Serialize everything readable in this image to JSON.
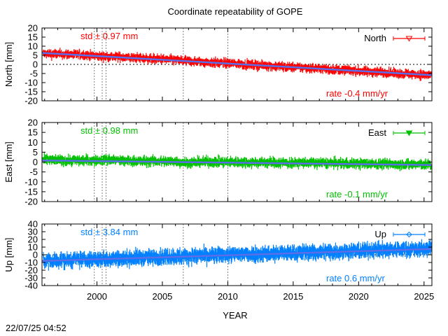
{
  "title": "Coordinate repeatability of GOPE",
  "timestamp": "22/07/25 04:52",
  "colors": {
    "north": "#ff0000",
    "east": "#00c000",
    "up": "#0080ff",
    "trend": "#5b6ee8"
  },
  "chart_data": [
    {
      "type": "scatter",
      "name": "north",
      "title": "Coordinate repeatability of GOPE",
      "legend": "North",
      "legend_position": "top-right",
      "ylabel": "North [mm]",
      "xlabel": "",
      "xlim": [
        1995.8,
        2025.6
      ],
      "ylim": [
        -20,
        20
      ],
      "yticks": [
        20,
        15,
        10,
        5,
        0,
        -5,
        -10,
        -15,
        -20
      ],
      "std_text": "std ± 0.97 mm",
      "rate_text": "rate -0.4 mm/yr",
      "trend": {
        "x": [
          1995.8,
          2025.6
        ],
        "y": [
          6.3,
          -5.9
        ]
      },
      "series": [
        {
          "name": "x",
          "values": [
            1996.0,
            1997.0,
            1998.0,
            1999.0,
            2000.0,
            2001.0,
            2002.0,
            2003.0,
            2004.0,
            2005.0,
            2006.0,
            2007.0,
            2008.0,
            2009.0,
            2010.0,
            2011.0,
            2012.0,
            2013.0,
            2014.0,
            2015.0,
            2016.0,
            2017.0,
            2018.0,
            2019.0,
            2020.0,
            2021.0,
            2022.0,
            2023.0,
            2024.0,
            2025.0
          ]
        },
        {
          "name": "y",
          "values": [
            5.8,
            5.6,
            5.5,
            5.2,
            4.5,
            4.3,
            4.0,
            3.6,
            3.2,
            2.8,
            2.4,
            1.8,
            1.4,
            1.0,
            0.6,
            0.2,
            -0.3,
            -0.7,
            -1.1,
            -1.5,
            -1.9,
            -2.3,
            -2.8,
            -3.2,
            -3.6,
            -4.0,
            -4.4,
            -4.9,
            -5.3,
            -5.7
          ]
        }
      ]
    },
    {
      "type": "scatter",
      "name": "east",
      "legend": "East",
      "legend_position": "top-right",
      "ylabel": "East [mm]",
      "xlabel": "",
      "xlim": [
        1995.8,
        2025.6
      ],
      "ylim": [
        -20,
        20
      ],
      "yticks": [
        20,
        15,
        10,
        5,
        0,
        -5,
        -10,
        -15,
        -20
      ],
      "std_text": "std ± 0.98 mm",
      "rate_text": "rate -0.1 mm/yr",
      "trend": {
        "x": [
          1995.8,
          2025.6
        ],
        "y": [
          0.8,
          -1.5
        ]
      },
      "series": [
        {
          "name": "x",
          "values": [
            1996.0,
            1997.0,
            1998.0,
            1999.0,
            2000.0,
            2001.0,
            2002.0,
            2003.0,
            2004.0,
            2005.0,
            2006.0,
            2007.0,
            2008.0,
            2009.0,
            2010.0,
            2011.0,
            2012.0,
            2013.0,
            2014.0,
            2015.0,
            2016.0,
            2017.0,
            2018.0,
            2019.0,
            2020.0,
            2021.0,
            2022.0,
            2023.0,
            2024.0,
            2025.0
          ]
        },
        {
          "name": "y",
          "values": [
            1.0,
            0.9,
            0.8,
            0.8,
            0.7,
            1.2,
            0.6,
            0.5,
            0.4,
            0.4,
            0.3,
            -0.5,
            0.2,
            0.1,
            0.0,
            -0.1,
            -0.2,
            -0.2,
            -0.3,
            -0.4,
            -0.4,
            -0.5,
            -0.6,
            -0.7,
            -0.8,
            -0.9,
            -1.0,
            -1.1,
            -1.2,
            -1.3
          ]
        }
      ]
    },
    {
      "type": "scatter",
      "name": "up",
      "legend": "Up",
      "legend_position": "top-right",
      "ylabel": "Up [mm]",
      "xlabel": "YEAR",
      "xlim": [
        1995.8,
        2025.6
      ],
      "ylim": [
        -40,
        40
      ],
      "yticks": [
        40,
        30,
        20,
        10,
        0,
        -10,
        -20,
        -30,
        -40
      ],
      "xticks": [
        2000,
        2005,
        2010,
        2015,
        2020,
        2025
      ],
      "std_text": "std ± 3.84 mm",
      "rate_text": "rate  0.6 mm/yr",
      "trend": {
        "x": [
          1995.8,
          2025.6
        ],
        "y": [
          -8.0,
          7.5
        ]
      },
      "series": [
        {
          "name": "x",
          "values": [
            1996.0,
            1997.0,
            1998.0,
            1999.0,
            2000.0,
            2001.0,
            2002.0,
            2003.0,
            2004.0,
            2005.0,
            2006.0,
            2007.0,
            2008.0,
            2009.0,
            2010.0,
            2011.0,
            2012.0,
            2013.0,
            2014.0,
            2015.0,
            2016.0,
            2017.0,
            2018.0,
            2019.0,
            2020.0,
            2021.0,
            2022.0,
            2023.0,
            2024.0,
            2025.0
          ]
        },
        {
          "name": "y",
          "values": [
            -8.0,
            -7.5,
            -6.8,
            -6.3,
            -5.5,
            -5.0,
            -4.4,
            -3.9,
            -3.4,
            -2.8,
            -2.3,
            -1.7,
            -1.2,
            -0.7,
            -0.1,
            0.4,
            1.0,
            1.5,
            2.0,
            2.6,
            3.1,
            3.6,
            4.2,
            4.7,
            5.3,
            5.8,
            6.3,
            6.9,
            7.3,
            7.6
          ]
        }
      ]
    }
  ],
  "event_markers": [
    1999.8,
    2000.4,
    2000.7,
    2006.6,
    2010.0
  ]
}
